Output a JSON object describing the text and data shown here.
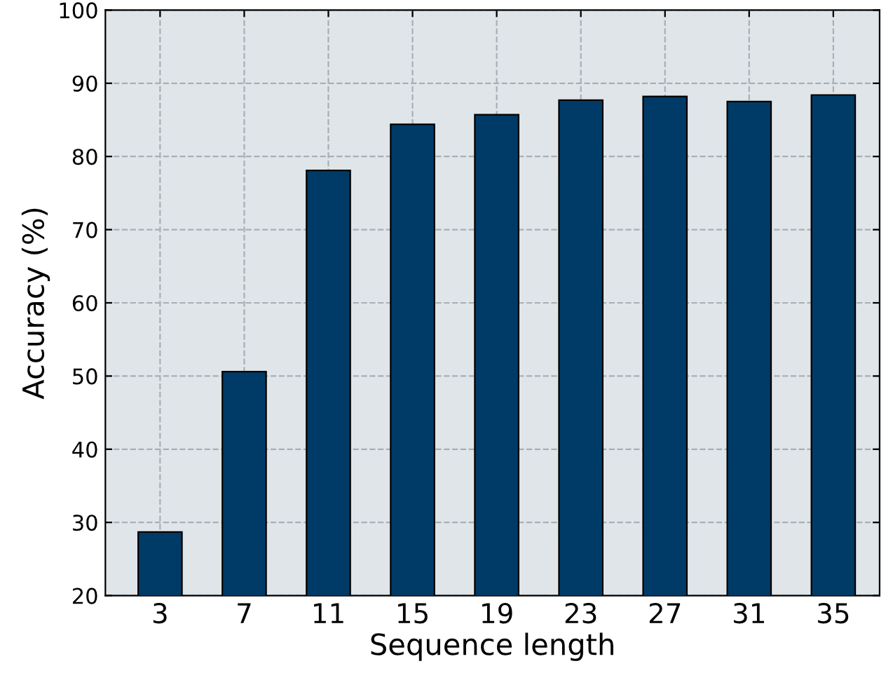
{
  "chart_data": {
    "type": "bar",
    "xlabel": "Sequence length",
    "ylabel": "Accuracy (%)",
    "categories": [
      "3",
      "7",
      "11",
      "15",
      "19",
      "23",
      "27",
      "31",
      "35"
    ],
    "values": [
      28.7,
      50.6,
      78.1,
      84.4,
      85.7,
      87.7,
      88.2,
      87.5,
      88.4
    ],
    "color": "#003b68",
    "ylim": [
      20,
      100
    ],
    "yticks": [
      20,
      30,
      40,
      50,
      60,
      70,
      80,
      90,
      100
    ],
    "grid": true
  }
}
